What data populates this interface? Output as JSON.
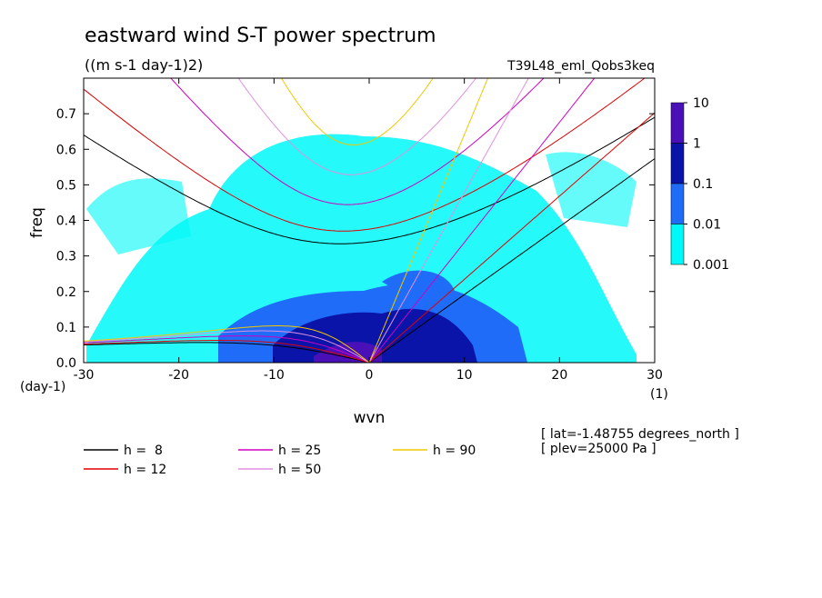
{
  "chart_data": {
    "type": "dispersion",
    "title": "eastward wind S-T power spectrum",
    "subtitle": "((m s-1 day-1)2)",
    "run_label": "T39L48_eml_Qobs3keq",
    "x_label": "wvn",
    "y_label": "freq",
    "y_unit": "(day-1)",
    "x_unit": "(1)",
    "notes": [
      "[ lat=-1.48755 degrees_north ]",
      "[ plev=25000 Pa ]"
    ],
    "xlim": [
      -30,
      30
    ],
    "xticks": [
      -30,
      -20,
      -10,
      0,
      10,
      20,
      30
    ],
    "ylim": [
      0,
      0.8
    ],
    "yticks": [
      {
        "value": 0,
        "label": "0.0"
      },
      0.1,
      0.2,
      0.3,
      0.4,
      0.5,
      0.6,
      0.7
    ],
    "series": [
      {
        "name": "h =  8",
        "h": 8,
        "color": "#000000"
      },
      {
        "name": "h = 12",
        "h": 12,
        "color": "#e00000"
      },
      {
        "name": "h = 25",
        "h": 25,
        "color": "#d000c0"
      },
      {
        "name": "h = 50",
        "h": 50,
        "color": "#e090e0"
      },
      {
        "name": "h = 90",
        "h": 90,
        "color": "#f0c800"
      }
    ],
    "colorbar": {
      "levels": [
        10,
        1,
        0.1,
        0.01,
        0.001
      ],
      "colors": [
        "#4a10b8",
        "#0a14a8",
        "#1e6cf8",
        "#00f8f8"
      ]
    }
  }
}
